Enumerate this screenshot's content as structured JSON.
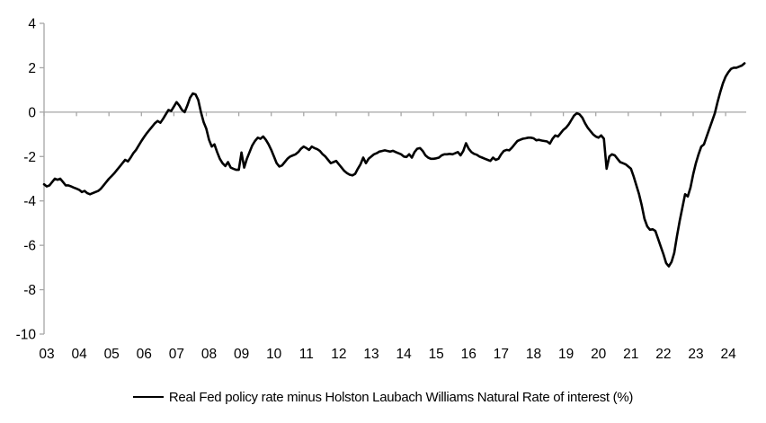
{
  "legend": {
    "label": "Real Fed policy rate minus Holston Laubach Williams Natural Rate of interest (%)"
  },
  "chart_data": {
    "type": "line",
    "title": "",
    "legend_position": "bottom-center",
    "series_name": "Real Fed policy rate minus Holston Laubach Williams Natural Rate of interest (%)",
    "frequency": "monthly",
    "start_period": "2003-01",
    "end_period": "2024-08",
    "x_tick_labels": [
      "03",
      "04",
      "05",
      "06",
      "07",
      "08",
      "09",
      "10",
      "11",
      "12",
      "13",
      "14",
      "15",
      "16",
      "17",
      "18",
      "19",
      "20",
      "21",
      "22",
      "23",
      "24"
    ],
    "y_ticks": [
      4,
      2,
      0,
      -2,
      -4,
      -6,
      -8,
      -10
    ],
    "ylim": [
      -10,
      4
    ],
    "grid": false,
    "zero_line": true,
    "colors": {
      "line": "#000000",
      "axis": "#a6a6a6",
      "tick_text": "#000000",
      "background": "#ffffff"
    },
    "values": [
      -3.25,
      -3.35,
      -3.3,
      -3.15,
      -3.0,
      -3.05,
      -3.0,
      -3.15,
      -3.3,
      -3.3,
      -3.35,
      -3.4,
      -3.45,
      -3.5,
      -3.6,
      -3.55,
      -3.65,
      -3.7,
      -3.65,
      -3.6,
      -3.55,
      -3.45,
      -3.3,
      -3.15,
      -3.0,
      -2.88,
      -2.75,
      -2.6,
      -2.45,
      -2.3,
      -2.15,
      -2.22,
      -2.05,
      -1.85,
      -1.7,
      -1.5,
      -1.3,
      -1.12,
      -0.95,
      -0.8,
      -0.65,
      -0.5,
      -0.4,
      -0.48,
      -0.3,
      -0.1,
      0.1,
      0.05,
      0.25,
      0.45,
      0.3,
      0.1,
      0.0,
      0.3,
      0.65,
      0.84,
      0.8,
      0.55,
      0.0,
      -0.45,
      -0.75,
      -1.25,
      -1.55,
      -1.45,
      -1.8,
      -2.1,
      -2.3,
      -2.43,
      -2.25,
      -2.5,
      -2.55,
      -2.6,
      -2.6,
      -1.82,
      -2.5,
      -2.1,
      -1.8,
      -1.5,
      -1.3,
      -1.15,
      -1.2,
      -1.1,
      -1.25,
      -1.45,
      -1.7,
      -2.0,
      -2.3,
      -2.45,
      -2.4,
      -2.25,
      -2.1,
      -2.0,
      -1.95,
      -1.9,
      -1.8,
      -1.65,
      -1.55,
      -1.62,
      -1.7,
      -1.55,
      -1.62,
      -1.67,
      -1.75,
      -1.9,
      -2.0,
      -2.15,
      -2.3,
      -2.25,
      -2.2,
      -2.35,
      -2.5,
      -2.65,
      -2.75,
      -2.82,
      -2.85,
      -2.78,
      -2.55,
      -2.35,
      -2.05,
      -2.3,
      -2.1,
      -2.0,
      -1.9,
      -1.85,
      -1.78,
      -1.75,
      -1.72,
      -1.75,
      -1.78,
      -1.74,
      -1.8,
      -1.85,
      -1.9,
      -2.0,
      -2.02,
      -1.9,
      -2.05,
      -1.8,
      -1.65,
      -1.62,
      -1.75,
      -1.95,
      -2.05,
      -2.1,
      -2.1,
      -2.08,
      -2.05,
      -1.95,
      -1.9,
      -1.9,
      -1.88,
      -1.9,
      -1.85,
      -1.8,
      -1.95,
      -1.75,
      -1.4,
      -1.65,
      -1.8,
      -1.88,
      -1.92,
      -2.0,
      -2.05,
      -2.1,
      -2.15,
      -2.2,
      -2.05,
      -2.15,
      -2.1,
      -1.9,
      -1.75,
      -1.7,
      -1.72,
      -1.6,
      -1.45,
      -1.3,
      -1.25,
      -1.2,
      -1.18,
      -1.15,
      -1.15,
      -1.18,
      -1.27,
      -1.25,
      -1.28,
      -1.3,
      -1.32,
      -1.42,
      -1.2,
      -1.05,
      -1.1,
      -0.95,
      -0.8,
      -0.7,
      -0.55,
      -0.35,
      -0.15,
      -0.05,
      -0.1,
      -0.25,
      -0.5,
      -0.7,
      -0.85,
      -1.0,
      -1.1,
      -1.15,
      -1.05,
      -1.2,
      -2.55,
      -2.0,
      -1.9,
      -1.95,
      -2.1,
      -2.25,
      -2.3,
      -2.35,
      -2.45,
      -2.55,
      -2.9,
      -3.3,
      -3.7,
      -4.2,
      -4.8,
      -5.15,
      -5.3,
      -5.28,
      -5.35,
      -5.7,
      -6.05,
      -6.4,
      -6.8,
      -6.95,
      -6.75,
      -6.35,
      -5.6,
      -4.9,
      -4.3,
      -3.7,
      -3.8,
      -3.4,
      -2.8,
      -2.3,
      -1.9,
      -1.55,
      -1.45,
      -1.1,
      -0.75,
      -0.4,
      -0.05,
      0.45,
      0.9,
      1.3,
      1.6,
      1.8,
      1.95,
      2.0,
      2.0,
      2.05,
      2.1,
      2.2
    ]
  }
}
